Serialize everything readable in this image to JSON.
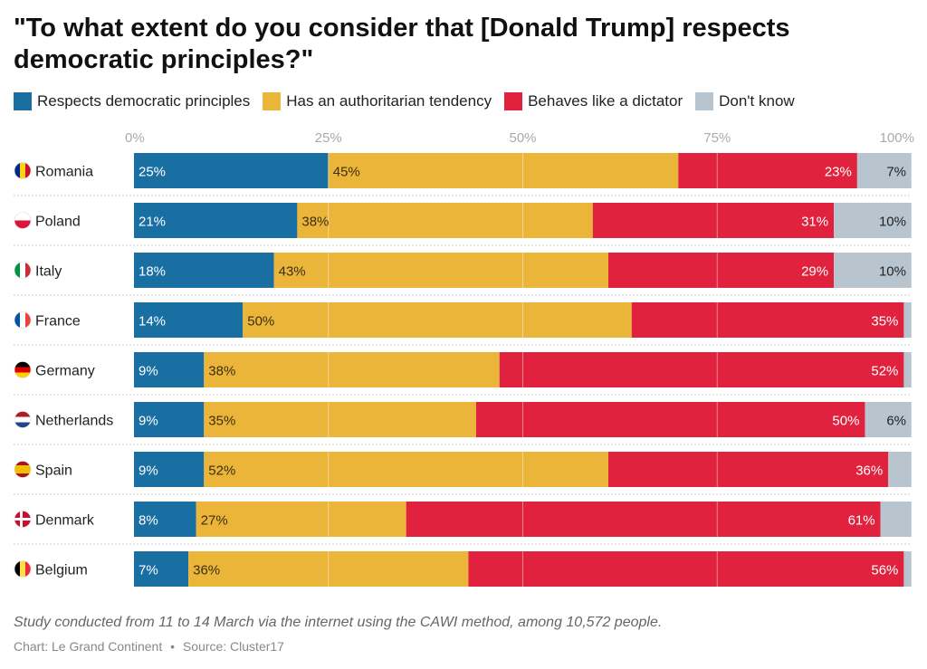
{
  "title": "\"To what extent do you consider that [Donald Trump] respects democratic principles?\"",
  "footer": {
    "note": "Study conducted from 11 to 14 March via the internet using the CAWI method, among 10,572 people.",
    "chart_credit": "Chart: Le Grand Continent",
    "separator": "•",
    "source": "Source: Cluster17"
  },
  "colors": {
    "respects": "#1a6fa2",
    "authoritarian": "#ebb539",
    "dictator": "#e0223e",
    "dont_know": "#b9c5ce"
  },
  "chart_data": {
    "type": "bar",
    "orientation": "horizontal",
    "stacked": true,
    "xlim": [
      0,
      100
    ],
    "x_ticks": [
      "0%",
      "25%",
      "50%",
      "75%",
      "100%"
    ],
    "grid": true,
    "legend_position": "top-left",
    "categories": [
      "Romania",
      "Poland",
      "Italy",
      "France",
      "Germany",
      "Netherlands",
      "Spain",
      "Denmark",
      "Belgium"
    ],
    "flags": [
      "flag-ro",
      "flag-pl",
      "flag-it",
      "flag-fr",
      "flag-de",
      "flag-nl",
      "flag-es",
      "flag-dk",
      "flag-be"
    ],
    "series": [
      {
        "name": "Respects democratic principles",
        "color": "#1a6fa2",
        "values": [
          25,
          21,
          18,
          14,
          9,
          9,
          9,
          8,
          7
        ]
      },
      {
        "name": "Has an authoritarian tendency",
        "color": "#ebb539",
        "values": [
          45,
          38,
          43,
          50,
          38,
          35,
          52,
          27,
          36
        ]
      },
      {
        "name": "Behaves like a dictator",
        "color": "#e0223e",
        "values": [
          23,
          31,
          29,
          35,
          52,
          50,
          36,
          61,
          56
        ]
      },
      {
        "name": "Don't know",
        "color": "#b9c5ce",
        "values": [
          7,
          10,
          10,
          1,
          1,
          6,
          3,
          4,
          1
        ]
      }
    ]
  }
}
